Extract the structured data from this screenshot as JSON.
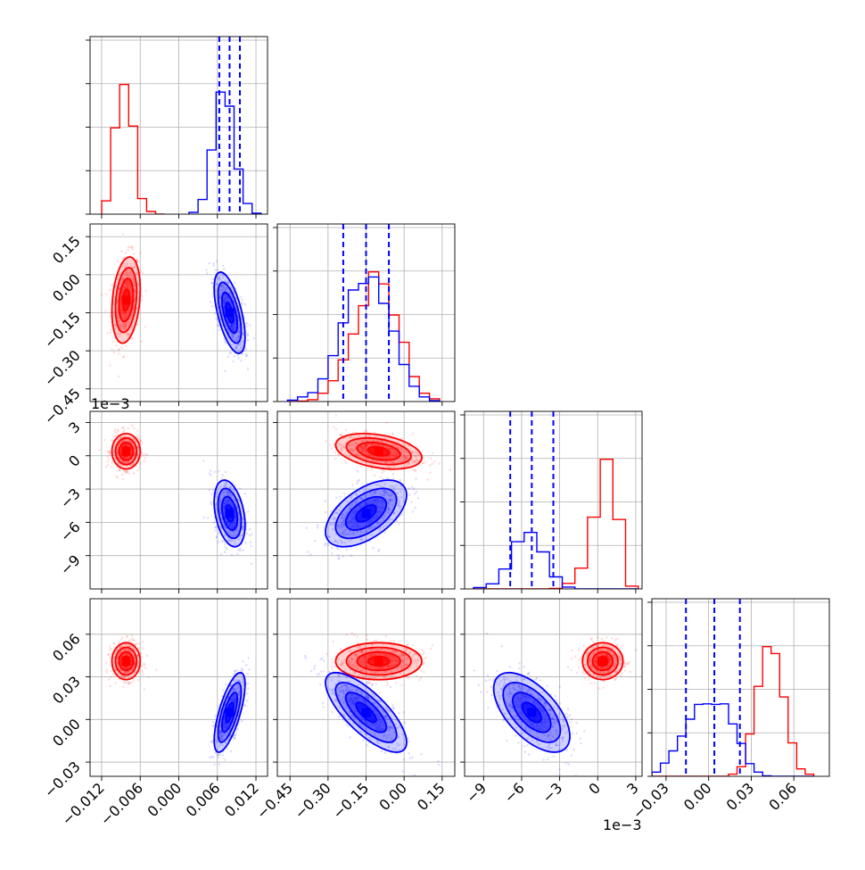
{
  "chart_data": {
    "type": "corner",
    "parameters": 4,
    "series": [
      {
        "name": "",
        "color": "#ff0000"
      },
      {
        "name": "",
        "color": "#0000ff"
      }
    ],
    "grid": true,
    "marginals": [
      {
        "index": 0,
        "range": [
          -0.0138,
          0.0138
        ],
        "bin_edges": [
          -0.012,
          -0.0106,
          -0.0092,
          -0.0078,
          -0.0064,
          -0.005,
          -0.0036,
          -0.0022
        ],
        "red_counts": [
          30,
          195,
          293,
          199,
          35,
          6,
          0
        ],
        "blue_bin_edges": [
          0.0016,
          0.003,
          0.0044,
          0.0058,
          0.0072,
          0.0086,
          0.01,
          0.0114,
          0.0128
        ],
        "blue_counts": [
          4,
          33,
          145,
          276,
          244,
          102,
          24,
          2
        ],
        "blue_quantiles": [
          0.0063,
          0.0079,
          0.0095
        ]
      },
      {
        "index": 1,
        "range": [
          -0.5,
          0.2
        ],
        "bin_edges": [
          -0.46,
          -0.42,
          -0.38,
          -0.34,
          -0.3,
          -0.26,
          -0.22,
          -0.18,
          -0.14,
          -0.1,
          -0.06,
          -0.02,
          0.02,
          0.06,
          0.1,
          0.14
        ],
        "red_counts": [
          0,
          1,
          4,
          18,
          45,
          90,
          146,
          207,
          280,
          254,
          187,
          128,
          54,
          18,
          6
        ],
        "blue_counts": [
          3,
          10,
          19,
          49,
          99,
          170,
          241,
          255,
          269,
          212,
          152,
          80,
          33,
          10,
          2
        ],
        "blue_quantiles": [
          -0.24,
          -0.15,
          -0.06
        ]
      },
      {
        "index": 2,
        "range": [
          -0.0105,
          0.0035
        ],
        "bin_edges": [
          -0.0098,
          -0.0088,
          -0.0078,
          -0.0068,
          -0.0058,
          -0.0048,
          -0.0038,
          -0.0028,
          -0.0018,
          -0.0008,
          0.0002,
          0.0012,
          0.0022,
          0.0032
        ],
        "red_counts": [
          0,
          0,
          0,
          0,
          0,
          0,
          1,
          12,
          45,
          155,
          280,
          150,
          6
        ],
        "blue_counts": [
          3,
          11,
          43,
          102,
          122,
          80,
          26,
          4,
          0,
          0,
          0,
          0,
          0
        ],
        "blue_quantiles": [
          -0.0069,
          -0.0052,
          -0.0035
        ]
      },
      {
        "index": 3,
        "range": [
          -0.04,
          0.085
        ],
        "bin_edges": [
          -0.04,
          -0.034,
          -0.028,
          -0.022,
          -0.016,
          -0.01,
          -0.004,
          0.002,
          0.008,
          0.014,
          0.02,
          0.026,
          0.032,
          0.038,
          0.044,
          0.05,
          0.056,
          0.062,
          0.068,
          0.074
        ],
        "red_counts": [
          0,
          0,
          0,
          0,
          0,
          0,
          0,
          0,
          0,
          4,
          18,
          80,
          170,
          245,
          232,
          150,
          63,
          14,
          4
        ],
        "blue_counts": [
          8,
          25,
          48,
          76,
          108,
          136,
          137,
          136,
          137,
          99,
          62,
          24,
          8,
          1,
          0,
          0,
          0,
          0,
          0
        ],
        "blue_quantiles": [
          -0.016,
          0.004,
          0.022
        ]
      }
    ],
    "joint": {
      "red": {
        "mean": [
          -0.0082,
          -0.1,
          0.0004,
          0.041
        ],
        "sd": [
          0.0011,
          0.085,
          0.0008,
          0.0065
        ],
        "corr": [
          [
            1,
            0.25,
            0.0,
            0.0
          ],
          [
            0.25,
            1,
            -0.35,
            0.0
          ],
          [
            0.0,
            -0.35,
            1,
            0.0
          ],
          [
            0.0,
            0.0,
            0.0,
            1
          ]
        ]
      },
      "blue": {
        "mean": [
          0.0079,
          -0.15,
          -0.0052,
          0.005
        ],
        "sd": [
          0.0012,
          0.08,
          0.0015,
          0.014
        ],
        "corr": [
          [
            1,
            -0.6,
            -0.35,
            0.7
          ],
          [
            -0.6,
            1,
            0.55,
            -0.75
          ],
          [
            -0.35,
            0.55,
            1,
            -0.6
          ],
          [
            0.7,
            -0.75,
            -0.6,
            1
          ]
        ]
      }
    },
    "axes": {
      "x_ticks": [
        [
          "-0.012",
          "-0.006",
          "0.000",
          "0.006",
          "0.012"
        ],
        [
          "-0.45",
          "-0.30",
          "-0.15",
          "0.00",
          "0.15"
        ],
        [
          "-9",
          "-6",
          "-3",
          "0",
          "3"
        ],
        [
          "-0.03",
          "0.00",
          "0.03",
          "0.06"
        ]
      ],
      "x_tick_values": [
        [
          -0.012,
          -0.006,
          0.0,
          0.006,
          0.012
        ],
        [
          -0.45,
          -0.3,
          -0.15,
          0.0,
          0.15
        ],
        [
          -0.009,
          -0.006,
          -0.003,
          0.0,
          0.003
        ],
        [
          -0.03,
          0.0,
          0.03,
          0.06
        ]
      ],
      "y_ticks": [
        [],
        [
          "0.15",
          "0.00",
          "-0.15",
          "-0.30",
          "-0.45"
        ],
        [
          "3",
          "0",
          "-3",
          "-6",
          "-9"
        ],
        [
          "0.06",
          "0.03",
          "0.00",
          "-0.03"
        ]
      ],
      "y_tick_values": [
        [],
        [
          0.15,
          0.0,
          -0.15,
          -0.3,
          -0.45
        ],
        [
          0.003,
          0.0,
          -0.003,
          -0.006,
          -0.009
        ],
        [
          0.06,
          0.03,
          0.0,
          -0.03
        ]
      ],
      "y_range_row3": [
        -0.012,
        0.004
      ],
      "offset_label_row": "1e−3",
      "offset_label_col": "1e−3"
    }
  }
}
